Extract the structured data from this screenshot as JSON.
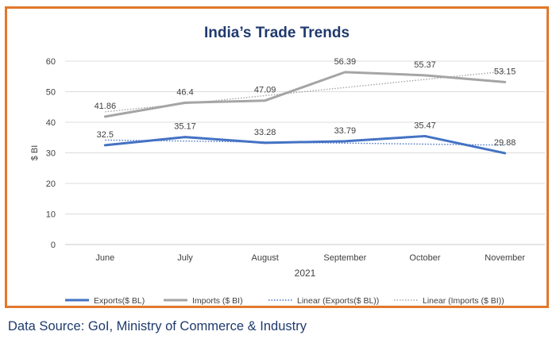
{
  "source_text": "Data Source: GoI, Ministry of Commerce & Industry",
  "chart_data": {
    "type": "line",
    "title": "India’s Trade Trends",
    "xlabel": "2021",
    "ylabel": "$ BI",
    "ylim": [
      0,
      60
    ],
    "yticks": [
      0,
      10,
      20,
      30,
      40,
      50,
      60
    ],
    "categories": [
      "June",
      "July",
      "August",
      "September",
      "October",
      "November"
    ],
    "grid": "horizontal",
    "legend": "bottom",
    "series": [
      {
        "name": "Exports($ BL)",
        "values": [
          32.5,
          35.17,
          33.28,
          33.79,
          35.47,
          29.88
        ],
        "labels": [
          "32.5",
          "35.17",
          "33.28",
          "33.79",
          "35.47",
          "29.88"
        ],
        "color": "#4472c4"
      },
      {
        "name": "Imports ($ BI)",
        "values": [
          41.86,
          46.4,
          47.09,
          56.39,
          55.37,
          53.15
        ],
        "labels": [
          "41.86",
          "46.4",
          "47.09",
          "56.39",
          "55.37",
          "53.15"
        ],
        "color": "#a5a5a5"
      }
    ],
    "trendlines": [
      {
        "name": "Linear (Exports($ BL))",
        "of": 0,
        "color": "#4472c4"
      },
      {
        "name": "Linear (Imports ($ BI))",
        "of": 1,
        "color": "#a5a5a5"
      }
    ]
  }
}
